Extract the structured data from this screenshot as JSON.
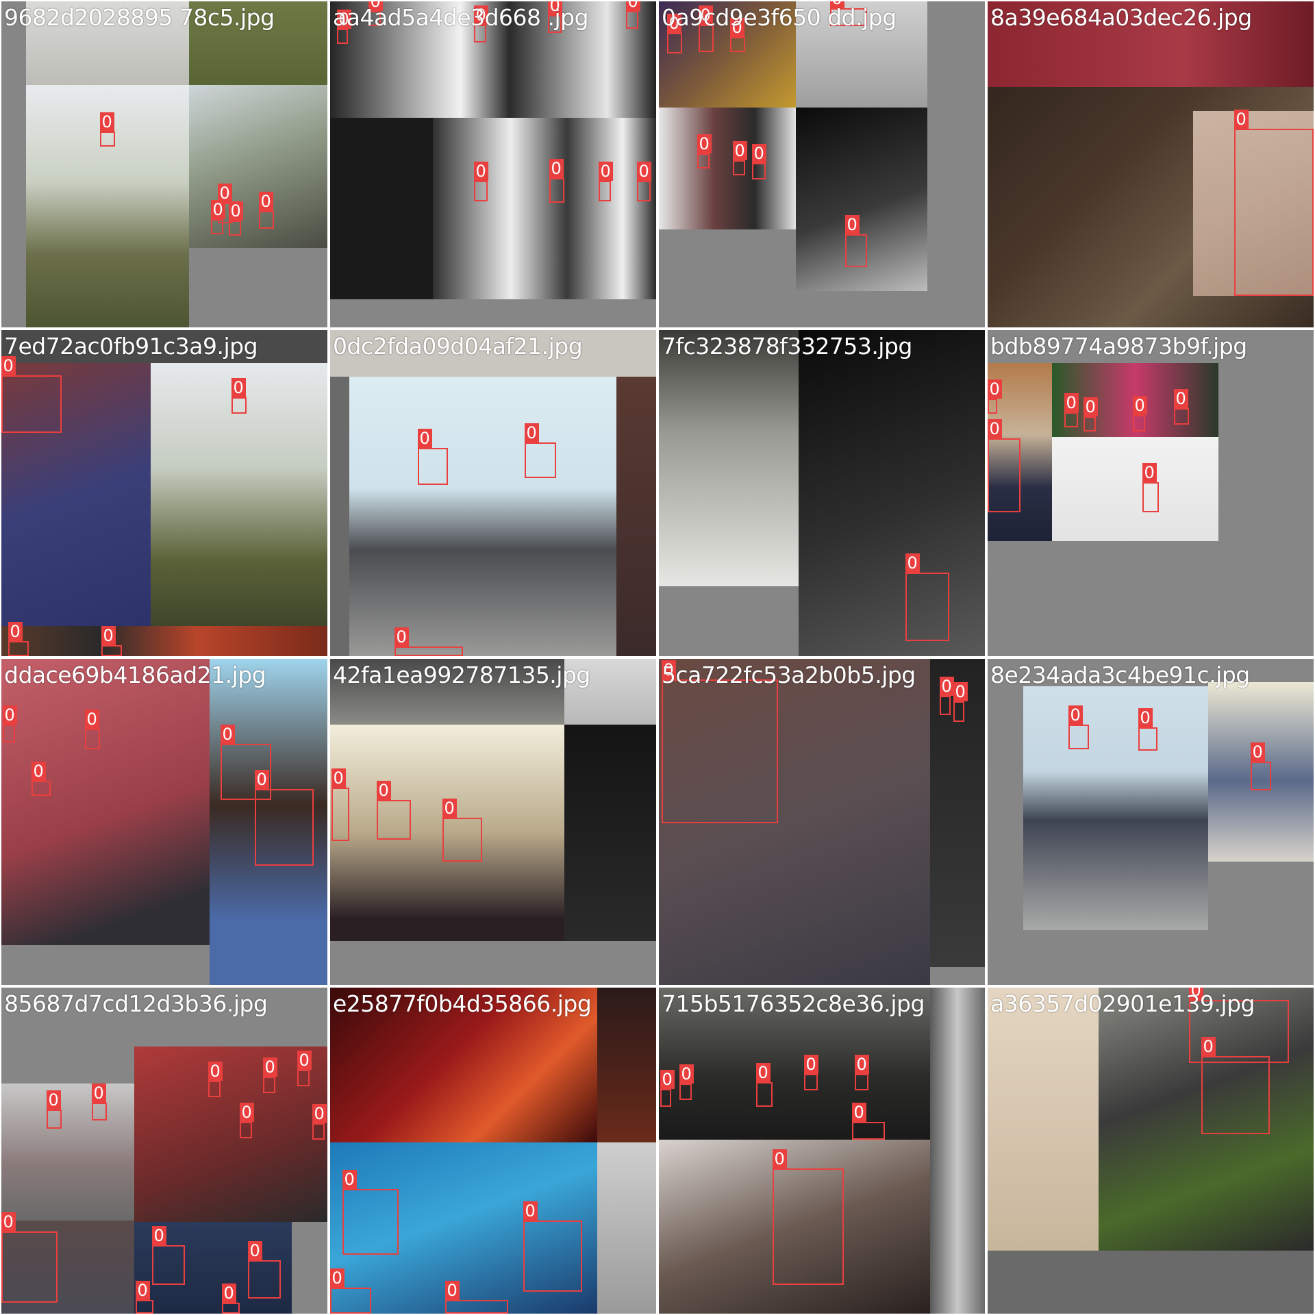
{
  "colors": {
    "box": "#ea3f3f",
    "label_text": "#ffffff",
    "pad_gray": "#868686",
    "pad_dark": "#6a6a6a",
    "divider": "#ffffff"
  },
  "class_label": "0",
  "tiles": [
    {
      "filename": "9682d2028895 78c5.jpg",
      "detections": 6
    },
    {
      "filename": "aa4ad5a4de3d668 .jpg",
      "detections": 15
    },
    {
      "filename": "0a9cd9e3f650 dd.jpg",
      "detections": 11
    },
    {
      "filename": "8a39e684a03dec26.jpg",
      "detections": 1
    },
    {
      "filename": "7ed72ac0fb91c3a9.jpg",
      "detections": 4
    },
    {
      "filename": "0dc2fda09d04af21.jpg",
      "detections": 3
    },
    {
      "filename": "7fc323878f332753.jpg",
      "detections": 1
    },
    {
      "filename": "bdb89774a9873b9f.jpg",
      "detections": 11
    },
    {
      "filename": "ddace69b4186ad21.jpg",
      "detections": 6
    },
    {
      "filename": "42fa1ea992787135.jpg",
      "detections": 4
    },
    {
      "filename": "5ca722fc53a2b0b5.jpg",
      "detections": 3
    },
    {
      "filename": "8e234ada3c4be91c.jpg",
      "detections": 3
    },
    {
      "filename": "85687d7cd12d3b36.jpg",
      "detections": 14
    },
    {
      "filename": "e25877f0b4d35866.jpg",
      "detections": 4
    },
    {
      "filename": "715b5176352c8e36.jpg",
      "detections": 10
    },
    {
      "filename": "a36357d02901e139.jpg",
      "detections": 2
    }
  ]
}
